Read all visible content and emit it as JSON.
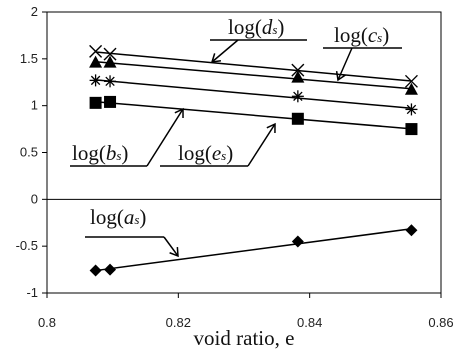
{
  "chart_data": {
    "type": "scatter",
    "title": "",
    "xlabel": "void ratio, e",
    "ylabel": "",
    "xlim": [
      0.8,
      0.86
    ],
    "ylim": [
      -1,
      2
    ],
    "xticks": [
      "0.8",
      "0.82",
      "0.84",
      "0.86"
    ],
    "yticks": [
      "2",
      "1.5",
      "1",
      "0.5",
      "0",
      "-0.5",
      "-1"
    ],
    "grid": false,
    "x": [
      0.8074,
      0.8096,
      0.8382,
      0.8555
    ],
    "series": [
      {
        "name": "log(ds)",
        "marker": "x-cross",
        "values": [
          1.58,
          1.55,
          1.38,
          1.26
        ]
      },
      {
        "name": "log(cs)",
        "marker": "triangle",
        "values": [
          1.46,
          1.46,
          1.3,
          1.17
        ]
      },
      {
        "name": "log(es)",
        "marker": "asterisk",
        "values": [
          1.27,
          1.26,
          1.1,
          0.96
        ]
      },
      {
        "name": "log(bs)",
        "marker": "square",
        "values": [
          1.03,
          1.04,
          0.86,
          0.75
        ]
      },
      {
        "name": "log(as)",
        "marker": "diamond",
        "values": [
          -0.76,
          -0.75,
          -0.45,
          -0.33
        ]
      }
    ],
    "annotations": [
      {
        "base": "log(",
        "sub": "d",
        "subscript": "s",
        "close": ")"
      },
      {
        "base": "log(",
        "sub": "c",
        "subscript": "s",
        "close": ")"
      },
      {
        "base": "log(",
        "sub": "b",
        "subscript": "s",
        "close": ")"
      },
      {
        "base": "log(",
        "sub": "e",
        "subscript": "s",
        "close": ")"
      },
      {
        "base": "log(",
        "sub": "a",
        "subscript": "s",
        "close": ")"
      }
    ],
    "colors": {
      "marker": "#000000",
      "line": "#000000",
      "axis": "#000000"
    }
  }
}
